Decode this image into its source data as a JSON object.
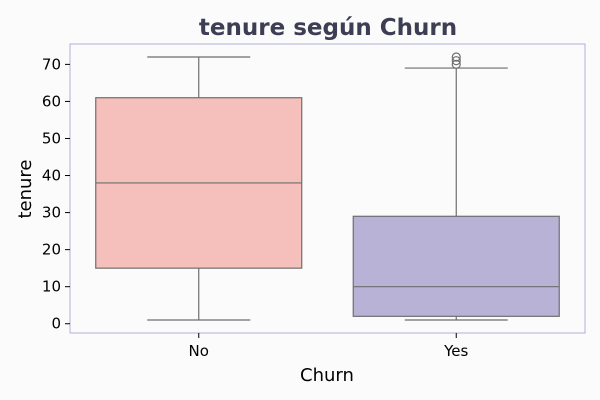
{
  "chart_data": {
    "type": "box",
    "title": "tenure según Churn",
    "xlabel": "Churn",
    "ylabel": "tenure",
    "ylim": [
      -2.5,
      75.5
    ],
    "yticks": [
      0,
      10,
      20,
      30,
      40,
      50,
      60,
      70
    ],
    "categories": [
      "No",
      "Yes"
    ],
    "boxes": [
      {
        "category": "No",
        "whisker_low": 1,
        "q1": 15,
        "median": 38,
        "q3": 61,
        "whisker_high": 72,
        "outliers": [],
        "color": "#f5bfbc"
      },
      {
        "category": "Yes",
        "whisker_low": 1,
        "q1": 2,
        "median": 10,
        "q3": 29,
        "whisker_high": 69,
        "outliers": [
          70,
          71,
          72
        ],
        "color": "#b9b2d7"
      }
    ]
  },
  "colors": {
    "frame": "#b0afd8",
    "box_edge": "#6e6e6e",
    "background": "#fbfbfb"
  }
}
